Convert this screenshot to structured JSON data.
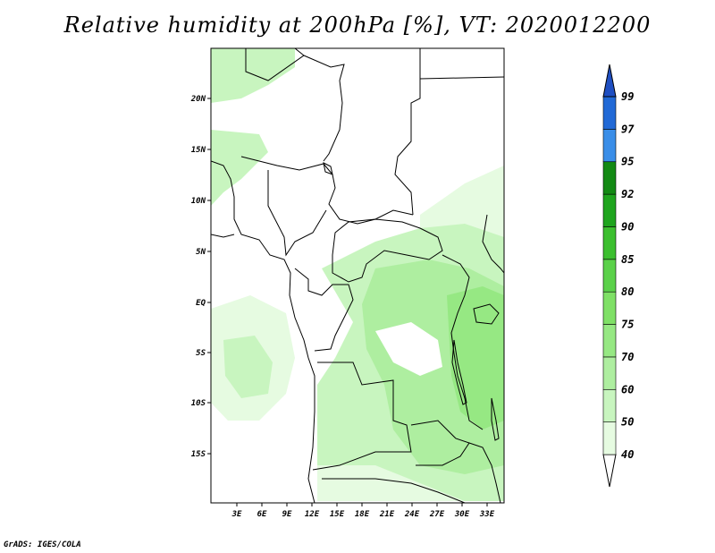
{
  "title": "Relative humidity at 200hPa [%], VT: 2020012200",
  "footer": "GrADS: IGES/COLA",
  "map": {
    "lon_labels": [
      "3E",
      "6E",
      "9E",
      "12E",
      "15E",
      "18E",
      "21E",
      "24E",
      "27E",
      "30E",
      "33E"
    ],
    "lat_labels": [
      "20N",
      "15N",
      "10N",
      "5N",
      "EQ",
      "5S",
      "10S",
      "15S"
    ]
  },
  "colorbar": {
    "levels": [
      "40",
      "50",
      "60",
      "70",
      "75",
      "80",
      "85",
      "90",
      "92",
      "95",
      "97",
      "99"
    ],
    "colors": [
      "#ffffff",
      "#e6fbe1",
      "#c8f5bf",
      "#aeeea0",
      "#96e883",
      "#7fe066",
      "#5bd14a",
      "#3cbf2f",
      "#1fa51e",
      "#138a14",
      "#3a8ee8",
      "#2169d6",
      "#1f4fc2"
    ]
  },
  "chart_data": {
    "type": "heatmap",
    "title": "Relative humidity at 200hPa [%], VT: 2020012200",
    "units": "%",
    "lon_range": [
      0,
      35
    ],
    "lat_range": [
      -20,
      25
    ],
    "contour_levels": [
      40,
      50,
      60,
      70,
      75,
      80,
      85,
      90,
      92,
      95,
      97,
      99
    ]
  }
}
